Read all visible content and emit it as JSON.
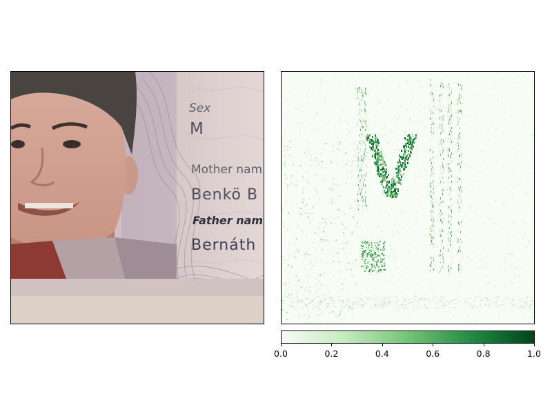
{
  "document_text": {
    "sex_label": "Sex",
    "sex_value": "M",
    "mother_label": "Mother nam",
    "mother_value": "Benkö B",
    "father_label": "Father nam",
    "father_value": "Bernáth"
  },
  "chart_data": {
    "type": "heatmap",
    "title": "",
    "xlabel": "",
    "ylabel": "",
    "colormap": "Greens",
    "colors": {
      "low": "#f7fcf5",
      "mid": "#74c476",
      "high": "#00441b"
    },
    "colorbar": {
      "range": [
        0.0,
        1.0
      ],
      "ticks": [
        "0.0",
        "0.2",
        "0.4",
        "0.6",
        "0.8",
        "1.0"
      ]
    },
    "grid": false,
    "hotspots": [
      {
        "region": "face/neck edge, center",
        "intensity": 0.95
      },
      {
        "region": "left vertical edge",
        "intensity": 0.55
      },
      {
        "region": "right vertical stripes",
        "intensity": 0.6
      },
      {
        "region": "lower-left blob",
        "intensity": 0.7
      },
      {
        "region": "background",
        "intensity": 0.05
      }
    ]
  }
}
